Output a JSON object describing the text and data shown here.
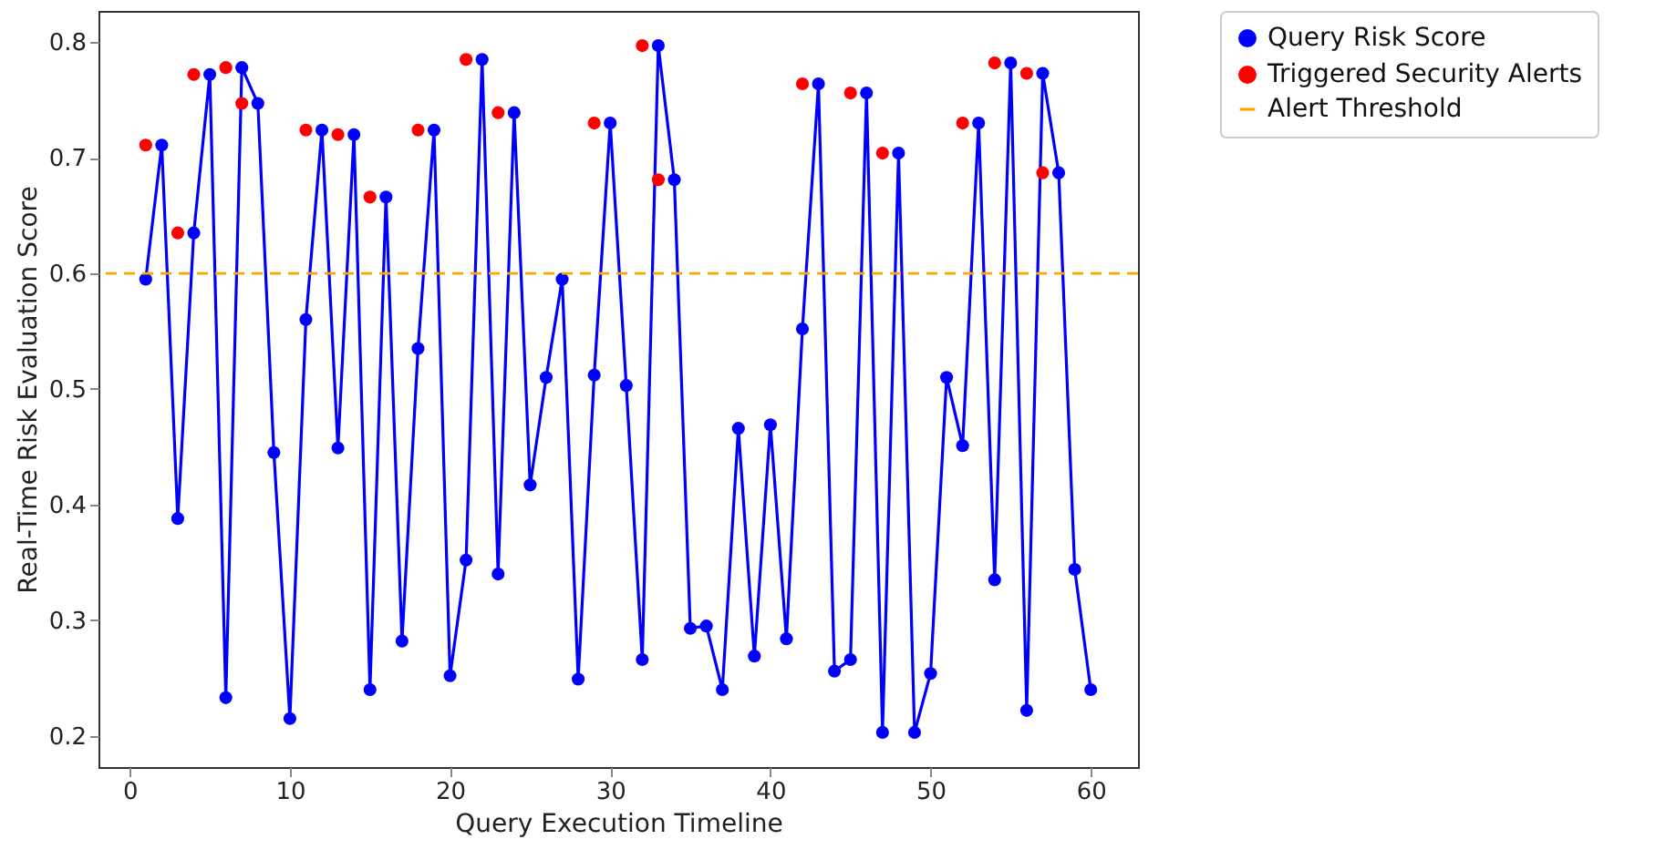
{
  "chart_data": {
    "type": "line",
    "xlabel": "Query Execution Timeline",
    "ylabel": "Real-Time Risk Evaluation Score",
    "xlim": [
      -1.95,
      62.95
    ],
    "xticks": [
      0,
      10,
      20,
      30,
      40,
      50,
      60
    ],
    "ylim": [
      0.173,
      0.827
    ],
    "yticks": [
      0.2,
      0.3,
      0.4,
      0.5,
      0.6,
      0.7,
      0.8
    ],
    "grid": false,
    "legend": "top right",
    "marker": "circle",
    "line_style": "solid",
    "series": [
      {
        "name": "Query Risk Score",
        "color": "#0000ff",
        "x": [
          1,
          2,
          3,
          4,
          5,
          6,
          7,
          8,
          9,
          10,
          11,
          12,
          13,
          14,
          15,
          16,
          17,
          18,
          19,
          20,
          21,
          22,
          23,
          24,
          25,
          26,
          27,
          28,
          29,
          30,
          31,
          32,
          33,
          34,
          35,
          36,
          37,
          38,
          39,
          40,
          41,
          42,
          43,
          44,
          45,
          46,
          47,
          48,
          49,
          50,
          51,
          52,
          53,
          54,
          55,
          56,
          57,
          58,
          59,
          60
        ],
        "values": [
          0.595,
          0.711,
          0.388,
          0.635,
          0.772,
          0.233,
          0.778,
          0.747,
          0.445,
          0.215,
          0.56,
          0.724,
          0.449,
          0.72,
          0.24,
          0.666,
          0.282,
          0.535,
          0.724,
          0.252,
          0.352,
          0.785,
          0.34,
          0.739,
          0.417,
          0.51,
          0.595,
          0.249,
          0.512,
          0.73,
          0.503,
          0.266,
          0.797,
          0.681,
          0.293,
          0.295,
          0.24,
          0.466,
          0.269,
          0.469,
          0.284,
          0.552,
          0.764,
          0.256,
          0.266,
          0.756,
          0.203,
          0.704,
          0.203,
          0.254,
          0.51,
          0.451,
          0.73,
          0.335,
          0.782,
          0.222,
          0.773,
          0.687,
          0.344,
          0.24
        ]
      },
      {
        "name": "Triggered Security Alerts",
        "type": "scatter",
        "color": "#ff0000",
        "x": [
          1,
          3,
          4,
          6,
          7,
          11,
          13,
          15,
          18,
          21,
          23,
          29,
          32,
          33,
          42,
          45,
          47,
          52,
          54,
          56,
          57
        ],
        "values": [
          0.711,
          0.635,
          0.772,
          0.778,
          0.747,
          0.724,
          0.72,
          0.666,
          0.724,
          0.785,
          0.739,
          0.73,
          0.797,
          0.681,
          0.764,
          0.756,
          0.704,
          0.73,
          0.782,
          0.773,
          0.687
        ]
      }
    ],
    "ref_lines": [
      {
        "axis": "y",
        "value": 0.6,
        "label": "Alert Threshold",
        "color": "#ffa500",
        "line_style": "dashed"
      }
    ]
  }
}
